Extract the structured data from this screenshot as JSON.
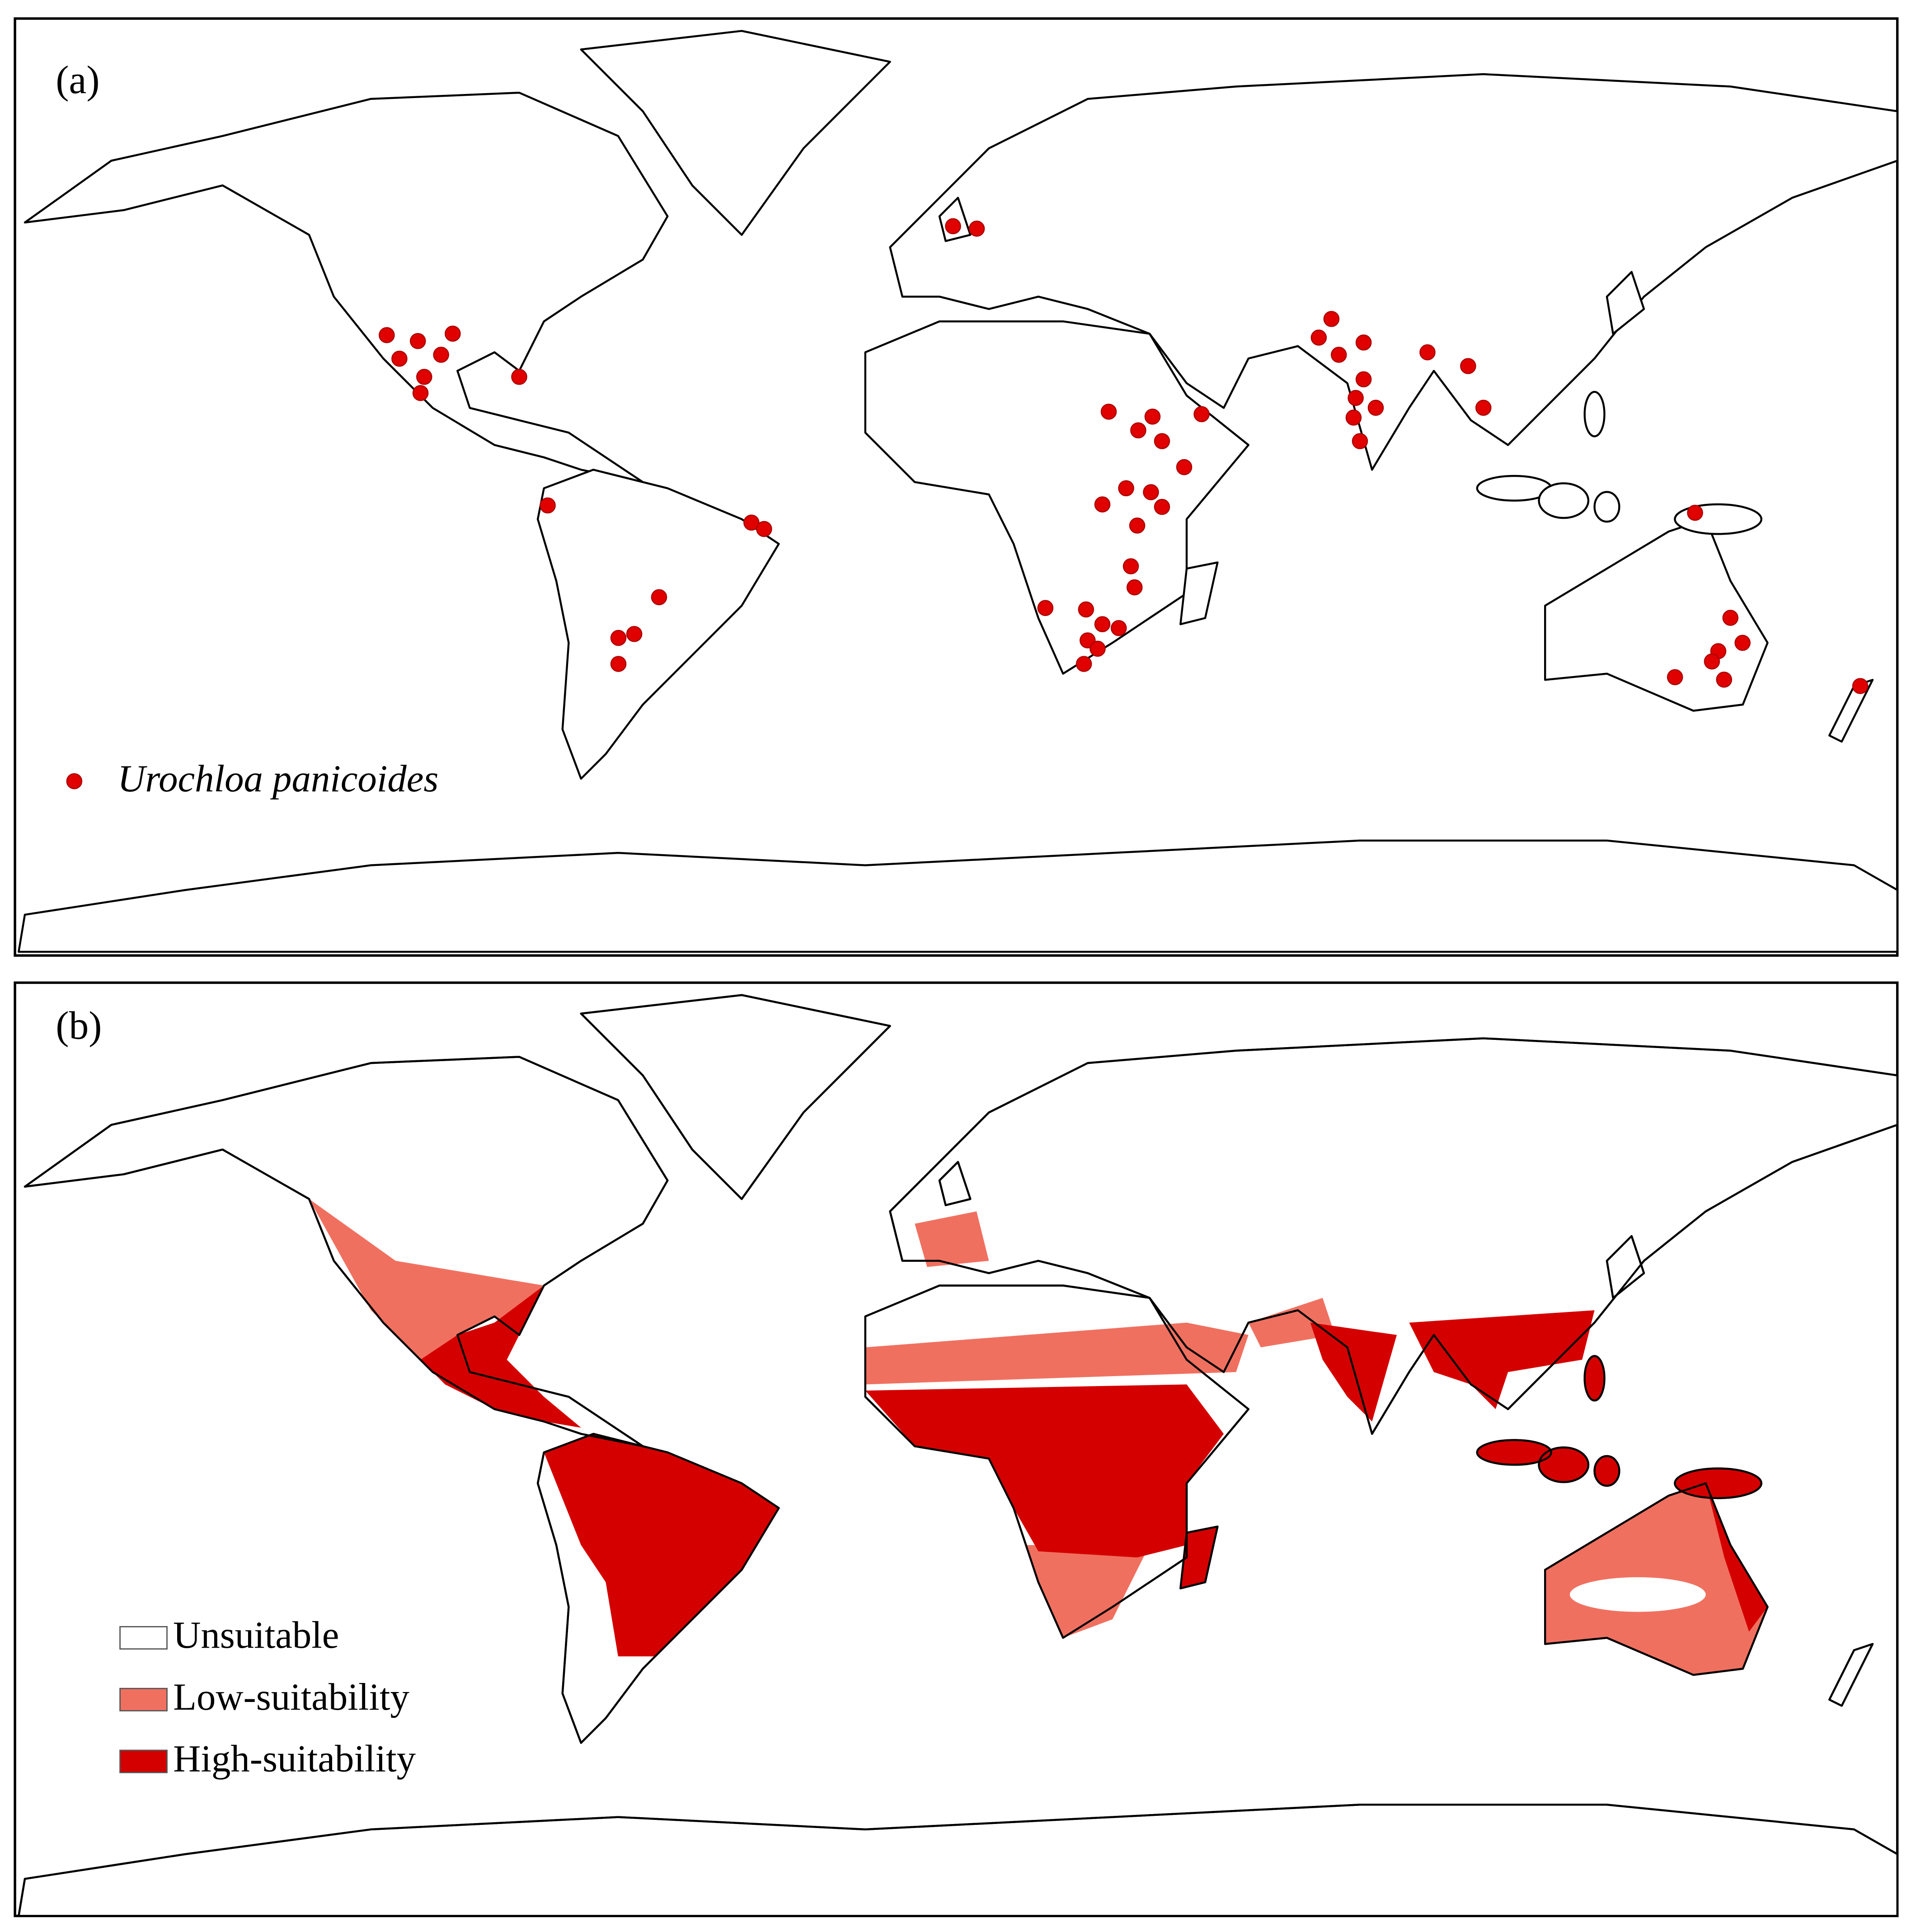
{
  "panels": [
    {
      "label": "(a)",
      "legend": "Urochloa panicoides"
    },
    {
      "label": "(b)",
      "legend": [
        "Unsuitable",
        "Low-suitability",
        "High-suitability"
      ]
    }
  ],
  "occurrences": [
    [
      1.4,
      53.4
    ],
    [
      5.9,
      52.9
    ],
    [
      -105.9,
      31.2
    ],
    [
      -100,
      30
    ],
    [
      -93.4,
      31.5
    ],
    [
      -103.5,
      26.4
    ],
    [
      -95.6,
      27.2
    ],
    [
      -98.8,
      22.7
    ],
    [
      -99.5,
      19.4
    ],
    [
      -80.8,
      22.7
    ],
    [
      -75.4,
      -3.5
    ],
    [
      -36.8,
      -7
    ],
    [
      -34.4,
      -8.3
    ],
    [
      -54.3,
      -22.2
    ],
    [
      -62,
      -30.5
    ],
    [
      -59,
      -29.7
    ],
    [
      -62,
      -35.8
    ],
    [
      30.9,
      15.6
    ],
    [
      36.5,
      11.8
    ],
    [
      39.2,
      14.6
    ],
    [
      41,
      9.6
    ],
    [
      48.5,
      15.1
    ],
    [
      45.2,
      4.3
    ],
    [
      34.2,
      0
    ],
    [
      38.9,
      -0.8
    ],
    [
      41,
      -3.8
    ],
    [
      29.7,
      -3.3
    ],
    [
      36.3,
      -7.6
    ],
    [
      35.1,
      -15.9
    ],
    [
      35.8,
      -20.2
    ],
    [
      18.9,
      -24.4
    ],
    [
      26.6,
      -24.7
    ],
    [
      29.7,
      -27.7
    ],
    [
      32.8,
      -28.5
    ],
    [
      26.9,
      -31
    ],
    [
      28.8,
      -32.7
    ],
    [
      26.2,
      -35.8
    ],
    [
      73.1,
      34.5
    ],
    [
      70.7,
      30.7
    ],
    [
      74.5,
      27.2
    ],
    [
      79.2,
      29.7
    ],
    [
      79.2,
      22.2
    ],
    [
      77.7,
      18.4
    ],
    [
      77.3,
      14.4
    ],
    [
      81.5,
      16.4
    ],
    [
      78.5,
      9.6
    ],
    [
      91.3,
      27.7
    ],
    [
      99,
      24.9
    ],
    [
      101.9,
      16.4
    ],
    [
      142,
      -5
    ],
    [
      148.7,
      -26.4
    ],
    [
      146.4,
      -33.2
    ],
    [
      151,
      -31.5
    ],
    [
      147.5,
      -39
    ],
    [
      138.2,
      -38.5
    ],
    [
      173.3,
      -40.3
    ],
    [
      145.2,
      -35.3
    ]
  ]
}
